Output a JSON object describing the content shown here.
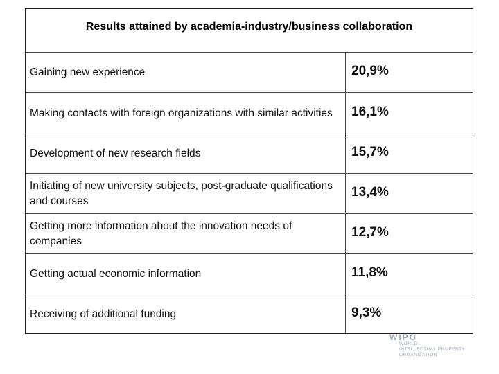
{
  "table": {
    "title": "Results attained by academia-industry/business collaboration",
    "rows": [
      [
        "Gaining new experience",
        "20,9%"
      ],
      [
        "Making contacts with foreign organizations with similar activities",
        "16,1%"
      ],
      [
        "Development of new research fields",
        "15,7%"
      ],
      [
        "Initiating of new university subjects, post-graduate qualifications and courses",
        "13,4%"
      ],
      [
        "Getting more information about the innovation needs of companies",
        "12,7%"
      ],
      [
        "Getting actual economic information",
        "11,8%"
      ],
      [
        "Receiving of additional funding",
        "9,3%"
      ]
    ]
  },
  "logo": {
    "name": "WIPO",
    "lines": [
      "WORLD",
      "INTELLECTUAL PROPERTY",
      "ORGANIZATION"
    ]
  }
}
